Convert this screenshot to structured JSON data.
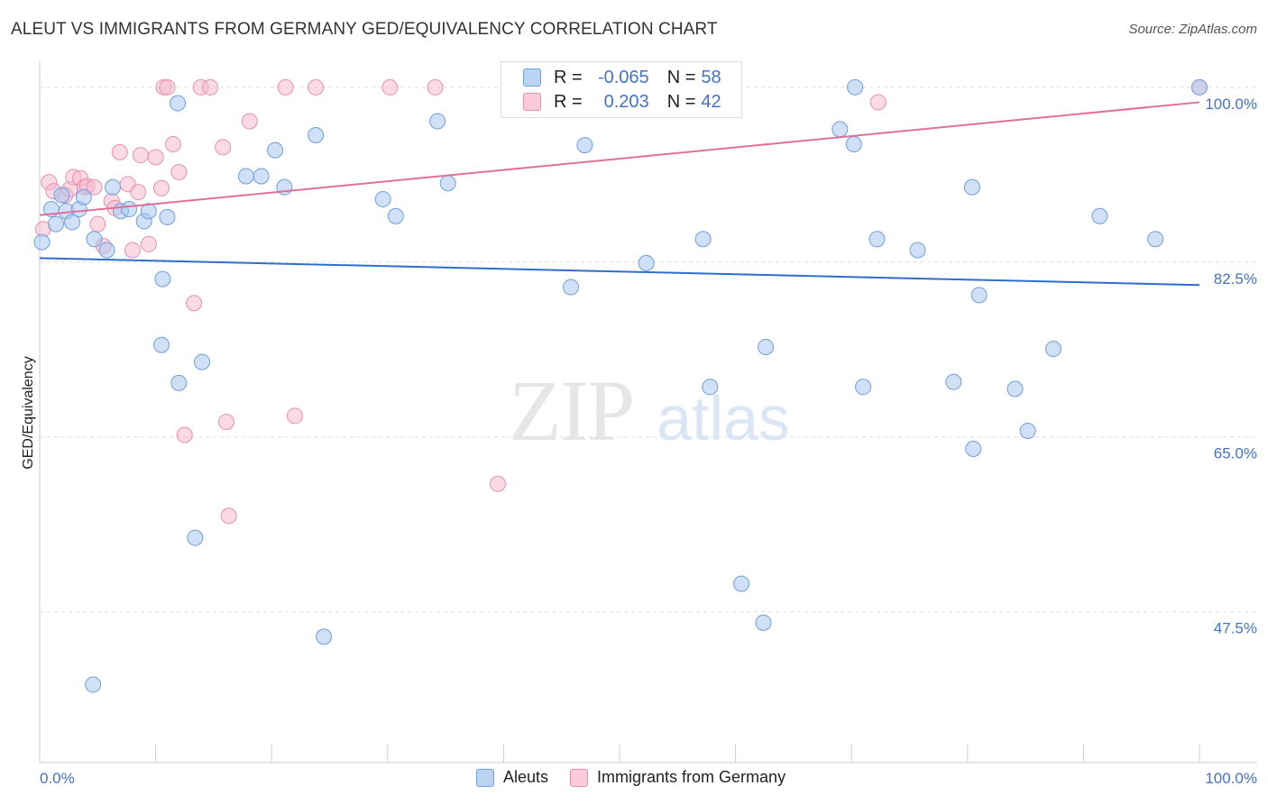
{
  "title": "ALEUT VS IMMIGRANTS FROM GERMANY GED/EQUIVALENCY CORRELATION CHART",
  "source": "Source: ZipAtlas.com",
  "watermark": {
    "zip": "ZIP",
    "atlas": "atlas"
  },
  "legend": {
    "rows": [
      {
        "r_label": "R =",
        "r_value": "-0.065",
        "n_label": "N =",
        "n_value": "58"
      },
      {
        "r_label": "R =",
        "r_value": "0.203",
        "n_label": "N =",
        "n_value": "42"
      }
    ]
  },
  "bottom_legend": {
    "aleuts": "Aleuts",
    "germany": "Immigrants from Germany"
  },
  "colors": {
    "blue_fill": "#a9c8f0",
    "blue_stroke": "#6f9fdc",
    "blue_line": "#2f6fcc",
    "pink_fill": "#f6bcd0",
    "pink_stroke": "#e890ae",
    "pink_line": "#e0709a",
    "axis_text": "#4472c4",
    "grid": "#dddddd"
  },
  "chart_data": {
    "type": "scatter",
    "title": "ALEUT VS IMMIGRANTS FROM GERMANY GED/EQUIVALENCY CORRELATION CHART",
    "xlabel": "",
    "ylabel": "GED/Equivalency",
    "xlim": [
      0,
      100
    ],
    "ylim": [
      32.4,
      102.6
    ],
    "x_tick_labels": {
      "left": "0.0%",
      "right": "100.0%"
    },
    "y_ticks": [
      {
        "value": 100.0,
        "label": "100.0%"
      },
      {
        "value": 82.5,
        "label": "82.5%"
      },
      {
        "value": 65.0,
        "label": "65.0%"
      },
      {
        "value": 47.5,
        "label": "47.5%"
      }
    ],
    "grid": true,
    "legend_position": "top-center",
    "series": [
      {
        "name": "Aleuts",
        "r": -0.065,
        "n": 58,
        "trend": [
          [
            0,
            82.9
          ],
          [
            100,
            80.2
          ]
        ],
        "points": [
          [
            0.2,
            84.5
          ],
          [
            1.0,
            87.8
          ],
          [
            1.4,
            86.3
          ],
          [
            1.9,
            89.2
          ],
          [
            2.3,
            87.6
          ],
          [
            2.8,
            86.5
          ],
          [
            3.4,
            87.8
          ],
          [
            3.8,
            89.0
          ],
          [
            4.6,
            40.2
          ],
          [
            4.7,
            84.8
          ],
          [
            5.8,
            83.7
          ],
          [
            6.3,
            90.0
          ],
          [
            7.0,
            87.6
          ],
          [
            7.7,
            87.8
          ],
          [
            9.0,
            86.6
          ],
          [
            9.4,
            87.6
          ],
          [
            10.5,
            74.2
          ],
          [
            10.6,
            80.8
          ],
          [
            11.0,
            87.0
          ],
          [
            11.9,
            98.4
          ],
          [
            12.0,
            70.4
          ],
          [
            13.4,
            54.9
          ],
          [
            14.0,
            72.5
          ],
          [
            17.8,
            91.1
          ],
          [
            19.1,
            91.1
          ],
          [
            20.3,
            93.7
          ],
          [
            21.1,
            90.0
          ],
          [
            23.8,
            95.2
          ],
          [
            29.6,
            88.8
          ],
          [
            30.7,
            87.1
          ],
          [
            34.3,
            96.6
          ],
          [
            35.2,
            90.4
          ],
          [
            45.8,
            80.0
          ],
          [
            47.0,
            94.2
          ],
          [
            52.3,
            82.4
          ],
          [
            55.9,
            100.0
          ],
          [
            57.2,
            84.8
          ],
          [
            57.8,
            70.0
          ],
          [
            60.5,
            50.3
          ],
          [
            62.4,
            46.4
          ],
          [
            62.6,
            74.0
          ],
          [
            69.0,
            95.8
          ],
          [
            70.2,
            94.3
          ],
          [
            70.3,
            100.0
          ],
          [
            71.0,
            70.0
          ],
          [
            72.2,
            84.8
          ],
          [
            75.7,
            83.7
          ],
          [
            78.8,
            70.5
          ],
          [
            80.5,
            63.8
          ],
          [
            80.4,
            90.0
          ],
          [
            81.0,
            79.2
          ],
          [
            84.1,
            69.8
          ],
          [
            85.2,
            65.6
          ],
          [
            87.4,
            73.8
          ],
          [
            91.4,
            87.1
          ],
          [
            96.2,
            84.8
          ],
          [
            100.0,
            100.0
          ],
          [
            24.5,
            45.0
          ]
        ]
      },
      {
        "name": "Immigrants from Germany",
        "r": 0.203,
        "n": 42,
        "trend": [
          [
            0,
            87.2
          ],
          [
            100,
            98.5
          ]
        ],
        "points": [
          [
            0.3,
            85.8
          ],
          [
            0.8,
            90.5
          ],
          [
            1.2,
            89.6
          ],
          [
            2.2,
            89.2
          ],
          [
            2.6,
            89.8
          ],
          [
            2.9,
            91.0
          ],
          [
            3.5,
            90.9
          ],
          [
            3.9,
            90.0
          ],
          [
            4.1,
            90.1
          ],
          [
            4.7,
            90.0
          ],
          [
            5.0,
            86.3
          ],
          [
            5.5,
            84.1
          ],
          [
            6.2,
            88.6
          ],
          [
            6.5,
            87.9
          ],
          [
            6.9,
            93.5
          ],
          [
            7.6,
            90.3
          ],
          [
            8.0,
            83.7
          ],
          [
            8.5,
            89.5
          ],
          [
            8.7,
            93.2
          ],
          [
            9.4,
            84.3
          ],
          [
            10.0,
            93.0
          ],
          [
            10.5,
            89.9
          ],
          [
            10.7,
            100.0
          ],
          [
            11.0,
            100.0
          ],
          [
            11.5,
            94.3
          ],
          [
            12.0,
            91.5
          ],
          [
            12.5,
            65.2
          ],
          [
            13.3,
            78.4
          ],
          [
            13.9,
            100.0
          ],
          [
            14.7,
            100.0
          ],
          [
            15.8,
            94.0
          ],
          [
            16.1,
            66.5
          ],
          [
            16.3,
            57.1
          ],
          [
            18.1,
            96.6
          ],
          [
            21.2,
            100.0
          ],
          [
            22.0,
            67.1
          ],
          [
            23.8,
            100.0
          ],
          [
            30.2,
            100.0
          ],
          [
            34.1,
            100.0
          ],
          [
            39.5,
            60.3
          ],
          [
            72.3,
            98.5
          ],
          [
            100.0,
            100.0
          ]
        ]
      }
    ]
  }
}
